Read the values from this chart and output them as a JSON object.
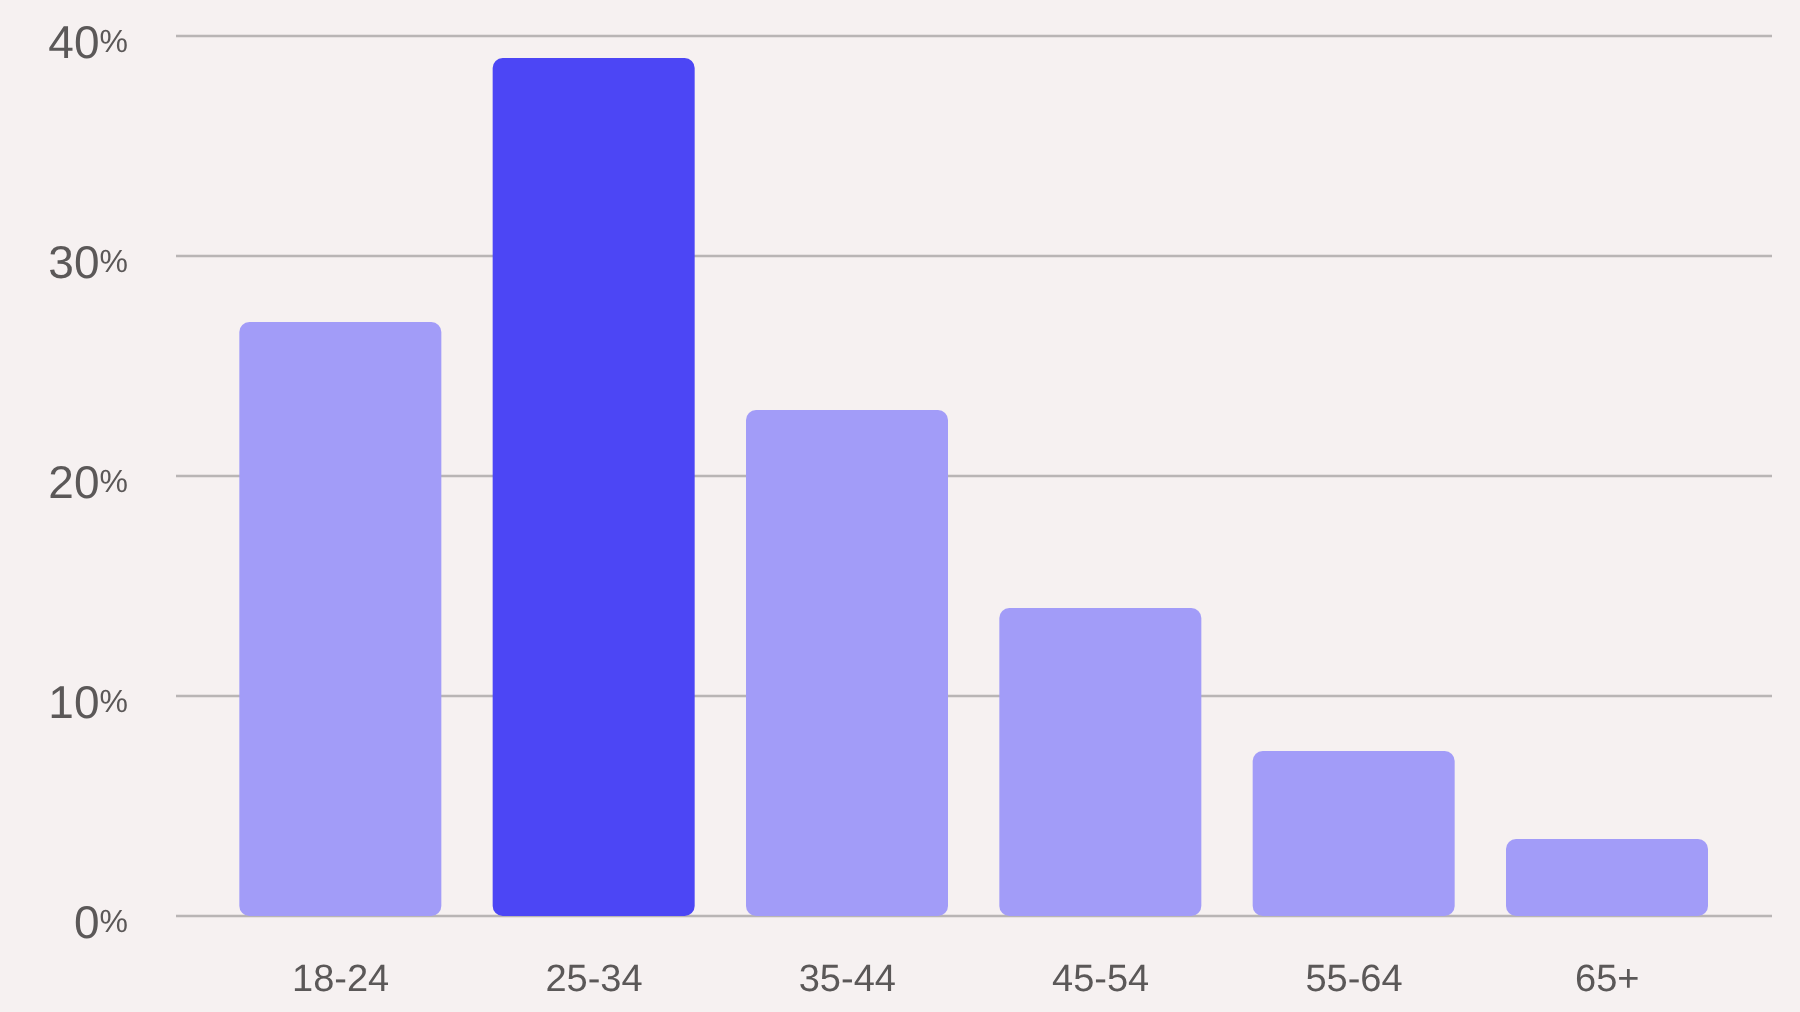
{
  "chart_data": {
    "type": "bar",
    "categories": [
      "18-24",
      "25-34",
      "35-44",
      "45-54",
      "55-64",
      "65+"
    ],
    "values": [
      27,
      39,
      23,
      14,
      7.5,
      3.5
    ],
    "colors": [
      "#a29cf8",
      "#4c46f5",
      "#a29cf8",
      "#a29cf8",
      "#a29cf8",
      "#a29cf8"
    ],
    "ylim": [
      0,
      40
    ],
    "yticks": [
      {
        "value": 0,
        "label": "0%"
      },
      {
        "value": 10,
        "label": "10%"
      },
      {
        "value": 20,
        "label": "20%"
      },
      {
        "value": 30,
        "label": "30%"
      },
      {
        "value": 40,
        "label": "40%"
      }
    ],
    "grid": "y"
  }
}
